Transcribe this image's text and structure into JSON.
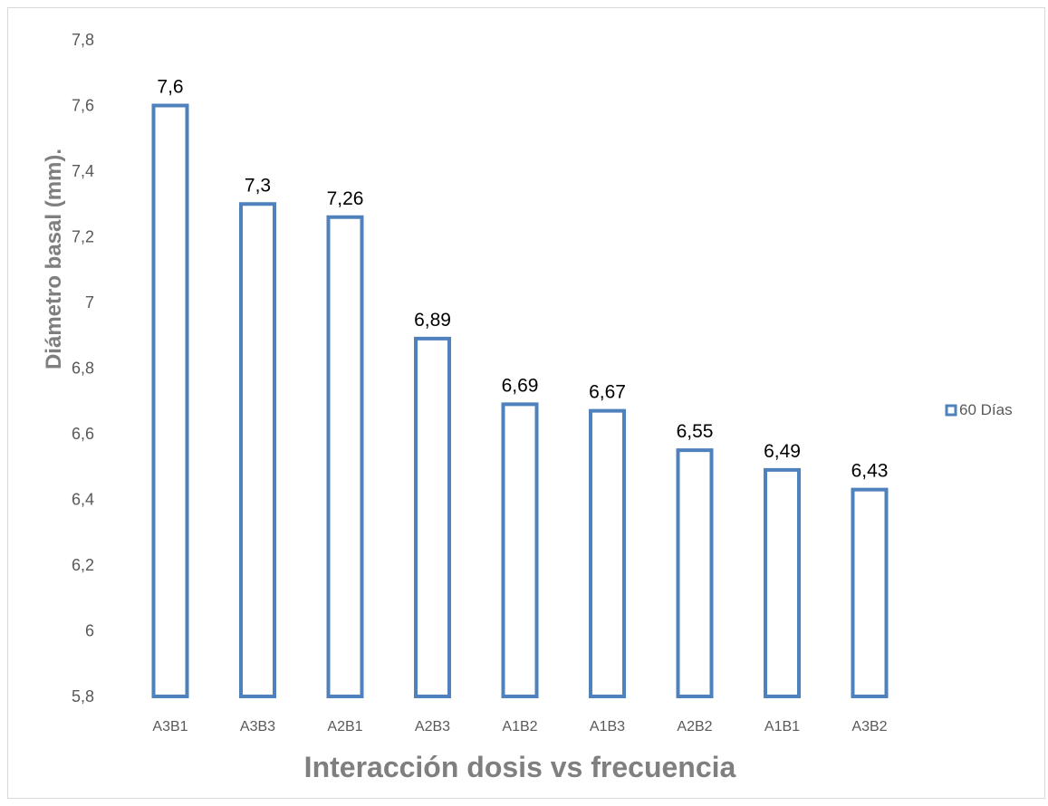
{
  "chart_data": {
    "type": "bar",
    "title": "",
    "xlabel": "Interacción dosis vs frecuencia",
    "ylabel": "Diámetro basal (mm).",
    "categories": [
      "A3B1",
      "A3B3",
      "A2B1",
      "A2B3",
      "A1B2",
      "A1B3",
      "A2B2",
      "A1B1",
      "A3B2"
    ],
    "series": [
      {
        "name": "60 Días",
        "values": [
          7.6,
          7.3,
          7.26,
          6.89,
          6.69,
          6.67,
          6.55,
          6.49,
          6.43
        ],
        "color": "#4f81bd"
      }
    ],
    "data_labels": [
      "7,6",
      "7,3",
      "7,26",
      "6,89",
      "6,69",
      "6,67",
      "6,55",
      "6,49",
      "6,43"
    ],
    "y_ticks": [
      "5,8",
      "6",
      "6,2",
      "6,4",
      "6,6",
      "6,8",
      "7",
      "7,2",
      "7,4",
      "7,6",
      "7,8"
    ],
    "ylim": [
      5.8,
      7.8
    ],
    "bar_style": "outline",
    "grid": false,
    "legend_position": "right"
  }
}
